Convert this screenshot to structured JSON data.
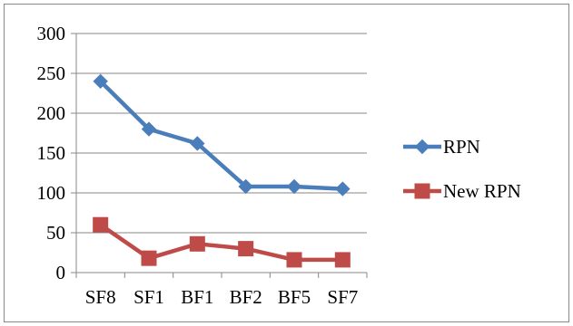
{
  "chart_data": {
    "type": "line",
    "categories": [
      "SF8",
      "SF1",
      "BF1",
      "BF2",
      "BF5",
      "SF7"
    ],
    "series": [
      {
        "name": "RPN",
        "values": [
          240,
          180,
          162,
          108,
          108,
          105
        ],
        "color": "#4a7ebb",
        "marker": "diamond"
      },
      {
        "name": "New RPN",
        "values": [
          60,
          18,
          36,
          30,
          16,
          16
        ],
        "color": "#be4b48",
        "marker": "square"
      }
    ],
    "title": "",
    "xlabel": "",
    "ylabel": "",
    "ylim": [
      0,
      300
    ],
    "yticks": [
      "0",
      "50",
      "100",
      "150",
      "200",
      "250",
      "300"
    ],
    "grid": true,
    "legend": "right"
  }
}
